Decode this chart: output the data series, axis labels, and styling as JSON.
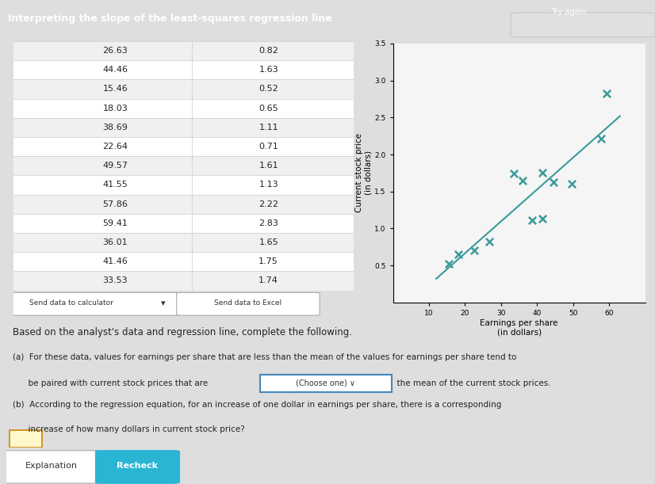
{
  "earnings": [
    26.63,
    44.46,
    15.46,
    18.03,
    38.69,
    22.64,
    49.57,
    41.55,
    57.86,
    59.41,
    36.01,
    41.46,
    33.53
  ],
  "stock_price": [
    0.82,
    1.63,
    0.52,
    0.65,
    1.11,
    0.71,
    1.61,
    1.13,
    2.22,
    2.83,
    1.65,
    1.75,
    1.74
  ],
  "title": "Interpreting the slope of the least-squares regression line",
  "xlabel": "Earnings per share\n(in dollars)",
  "ylabel": "Current stock price\n(in dollars)",
  "xlim": [
    0,
    70
  ],
  "ylim": [
    0,
    3.5
  ],
  "xticks": [
    10,
    20,
    30,
    40,
    50,
    60
  ],
  "yticks": [
    0.5,
    1.0,
    1.5,
    2.0,
    2.5,
    3.0,
    3.5
  ],
  "marker_color": "#3a9a9a",
  "line_color": "#3a9a9a",
  "header_bg": "#2ab5d4",
  "btn1_text": "Send data to calculator",
  "btn2_text": "Send data to Excel",
  "below_text": "Based on the analyst's data and regression line, complete the following.",
  "explanation_btn": "Explanation",
  "recheck_btn": "Recheck"
}
